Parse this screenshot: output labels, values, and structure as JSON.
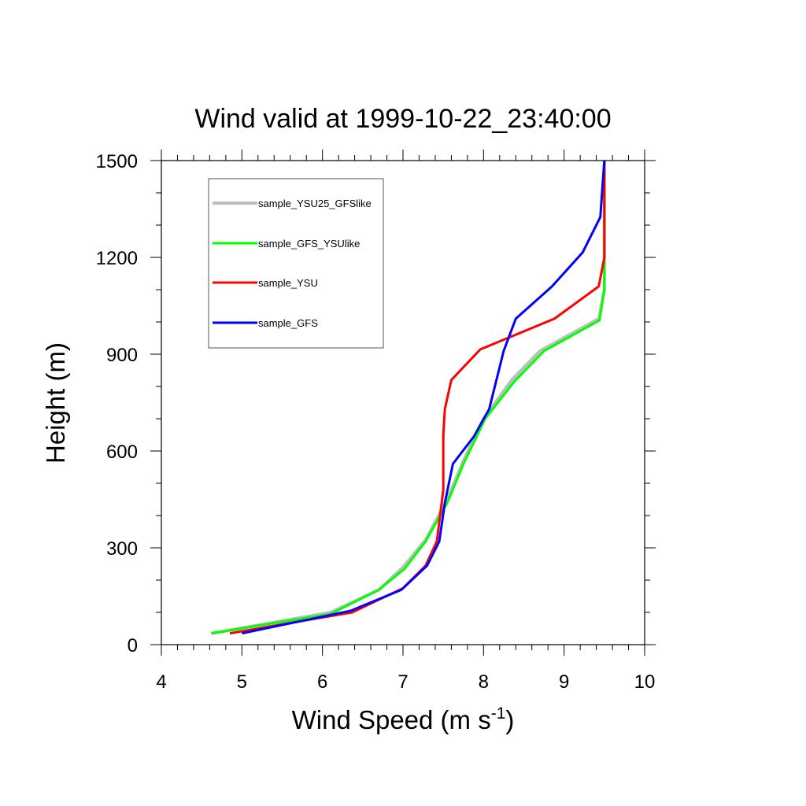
{
  "chart_data": {
    "type": "line",
    "title": "Wind valid at 1999-10-22_23:40:00",
    "xlabel": "Wind Speed (m s",
    "xlabel_sup": "-1",
    "xlabel_close": ")",
    "ylabel": "Height (m)",
    "xlim": [
      4,
      10
    ],
    "ylim": [
      0,
      1500
    ],
    "xticks": [
      "4",
      "5",
      "6",
      "7",
      "8",
      "9",
      "10"
    ],
    "yticks": [
      "0",
      "300",
      "600",
      "900",
      "1200",
      "1500"
    ],
    "xtick_values": [
      4,
      5,
      6,
      7,
      8,
      9,
      10
    ],
    "ytick_values": [
      0,
      300,
      600,
      900,
      1200,
      1500
    ],
    "legend_position": "top-left",
    "series": [
      {
        "name": "sample_YSU25_GFSlike",
        "color": "#bdbdbd",
        "points": [
          [
            4.63,
            35
          ],
          [
            6.1,
            100
          ],
          [
            6.7,
            170
          ],
          [
            7.0,
            240
          ],
          [
            7.28,
            325
          ],
          [
            7.55,
            450
          ],
          [
            7.75,
            570
          ],
          [
            8.0,
            700
          ],
          [
            8.35,
            820
          ],
          [
            8.7,
            910
          ],
          [
            9.43,
            1010
          ],
          [
            9.5,
            1100
          ],
          [
            9.5,
            1300
          ],
          [
            9.5,
            1500
          ]
        ]
      },
      {
        "name": "sample_GFS_YSUlike",
        "color": "#00ff00",
        "points": [
          [
            4.62,
            35
          ],
          [
            6.1,
            95
          ],
          [
            6.7,
            170
          ],
          [
            7.02,
            235
          ],
          [
            7.28,
            320
          ],
          [
            7.55,
            440
          ],
          [
            7.75,
            560
          ],
          [
            8.02,
            700
          ],
          [
            8.38,
            815
          ],
          [
            8.75,
            910
          ],
          [
            9.44,
            1005
          ],
          [
            9.5,
            1100
          ],
          [
            9.5,
            1300
          ],
          [
            9.5,
            1500
          ]
        ]
      },
      {
        "name": "sample_YSU",
        "color": "#ff0000",
        "points": [
          [
            4.85,
            35
          ],
          [
            6.37,
            100
          ],
          [
            7.0,
            175
          ],
          [
            7.28,
            245
          ],
          [
            7.42,
            320
          ],
          [
            7.5,
            480
          ],
          [
            7.5,
            650
          ],
          [
            7.52,
            730
          ],
          [
            7.6,
            820
          ],
          [
            7.96,
            915
          ],
          [
            8.88,
            1010
          ],
          [
            9.43,
            1110
          ],
          [
            9.5,
            1200
          ],
          [
            9.5,
            1500
          ]
        ]
      },
      {
        "name": "sample_GFS",
        "color": "#0000ff",
        "points": [
          [
            5.0,
            35
          ],
          [
            6.35,
            105
          ],
          [
            6.98,
            170
          ],
          [
            7.3,
            245
          ],
          [
            7.45,
            320
          ],
          [
            7.52,
            440
          ],
          [
            7.62,
            560
          ],
          [
            7.88,
            645
          ],
          [
            8.07,
            730
          ],
          [
            8.25,
            910
          ],
          [
            8.4,
            1010
          ],
          [
            8.85,
            1110
          ],
          [
            9.23,
            1215
          ],
          [
            9.45,
            1325
          ],
          [
            9.5,
            1500
          ]
        ]
      }
    ]
  }
}
